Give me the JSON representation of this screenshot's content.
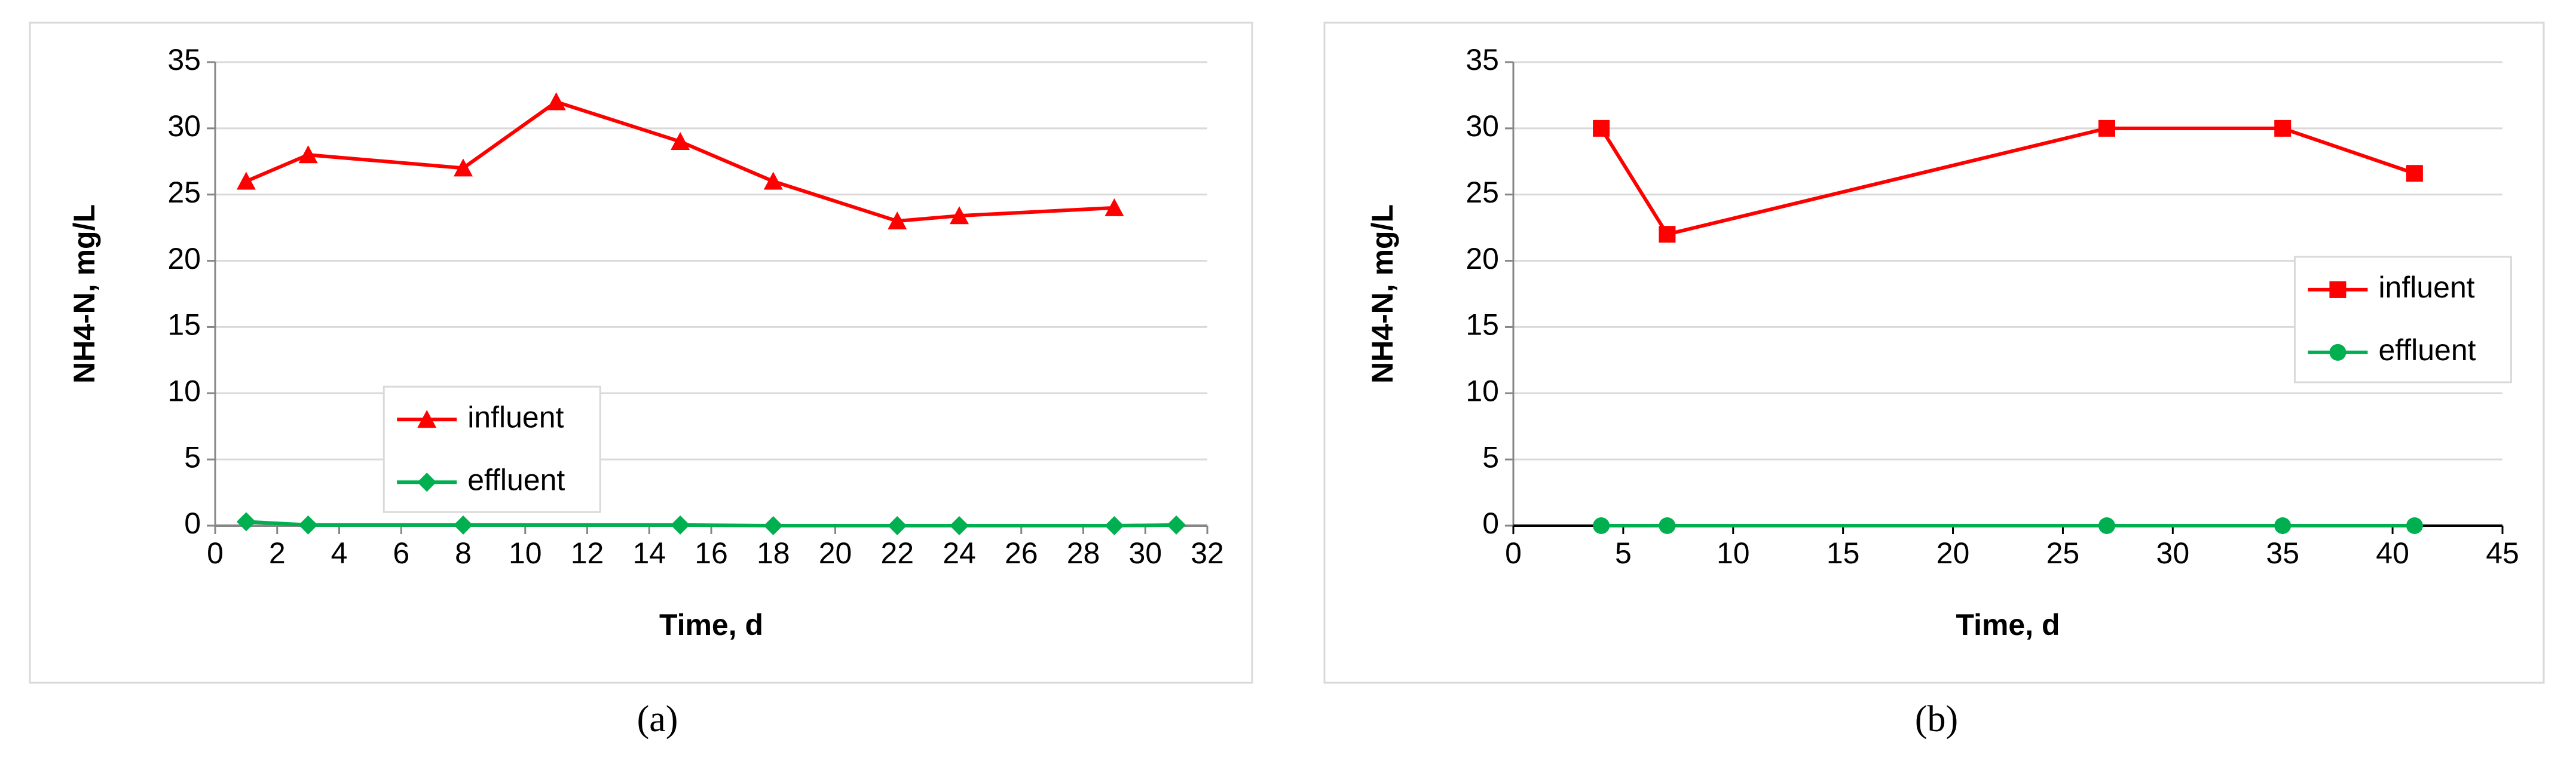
{
  "chart_data": [
    {
      "type": "line",
      "caption": "(a)",
      "x_label": "Time, d",
      "y_label": "NH4-N, mg/L",
      "xlim": [
        0,
        32
      ],
      "xticks": [
        0,
        2,
        4,
        6,
        8,
        10,
        12,
        14,
        16,
        18,
        20,
        22,
        24,
        26,
        28,
        30,
        32
      ],
      "ylim": [
        0,
        35
      ],
      "yticks": [
        0,
        5,
        10,
        15,
        20,
        25,
        30,
        35
      ],
      "grid": true,
      "legend": "center left",
      "series": [
        {
          "name": "influent",
          "color": "#ff0000",
          "marker": "triangle",
          "x": [
            1,
            3,
            8,
            11,
            15,
            18,
            22,
            24,
            29
          ],
          "values": [
            26,
            28,
            27,
            32,
            29,
            26,
            23,
            23.4,
            24
          ]
        },
        {
          "name": "effluent",
          "color": "#00b050",
          "marker": "diamond",
          "x": [
            1,
            3,
            8,
            15,
            18,
            22,
            24,
            29,
            31
          ],
          "values": [
            0.3,
            0.05,
            0.05,
            0.05,
            0,
            0,
            0,
            0,
            0.05
          ]
        }
      ]
    },
    {
      "type": "line",
      "caption": "(b)",
      "x_label": "Time, d",
      "y_label": "NH4-N, mg/L",
      "xlim": [
        0,
        45
      ],
      "xticks": [
        0,
        5,
        10,
        15,
        20,
        25,
        30,
        35,
        40,
        45
      ],
      "ylim": [
        0,
        35
      ],
      "yticks": [
        0,
        5,
        10,
        15,
        20,
        25,
        30,
        35
      ],
      "grid": true,
      "legend": "center right",
      "series": [
        {
          "name": "influent",
          "color": "#ff0000",
          "marker": "square",
          "x": [
            4,
            7,
            27,
            35,
            41
          ],
          "values": [
            30,
            22,
            30,
            30,
            26.6
          ]
        },
        {
          "name": "effluent",
          "color": "#00b050",
          "marker": "circle",
          "x": [
            4,
            7,
            27,
            35,
            41
          ],
          "values": [
            0,
            0,
            0,
            0,
            0
          ]
        }
      ]
    }
  ]
}
